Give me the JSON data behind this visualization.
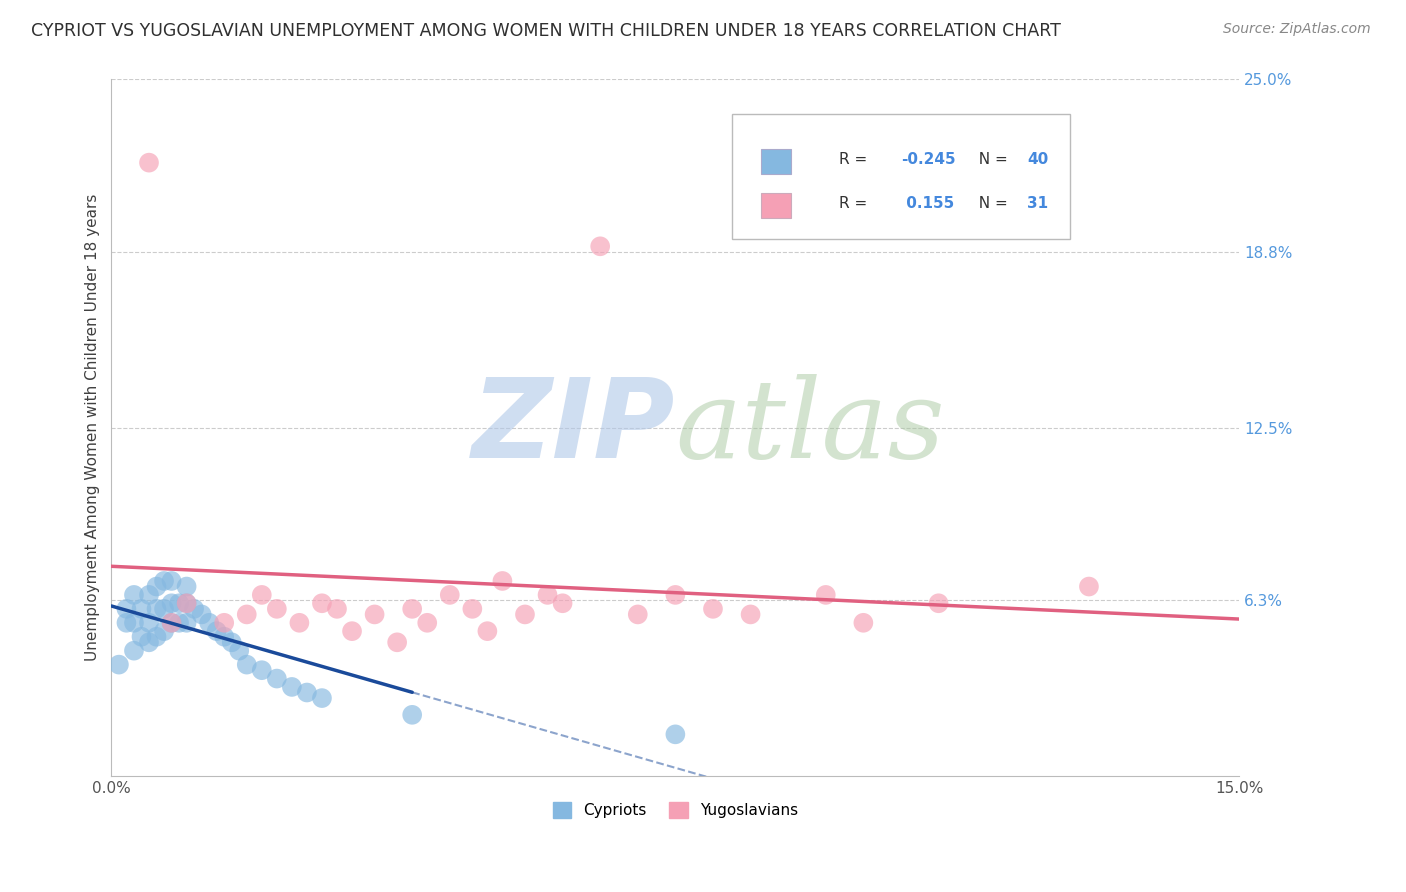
{
  "title": "CYPRIOT VS YUGOSLAVIAN UNEMPLOYMENT AMONG WOMEN WITH CHILDREN UNDER 18 YEARS CORRELATION CHART",
  "source": "Source: ZipAtlas.com",
  "ylabel": "Unemployment Among Women with Children Under 18 years",
  "xlim": [
    0.0,
    0.15
  ],
  "ylim": [
    0.0,
    0.25
  ],
  "ytick_vals": [
    0.063,
    0.125,
    0.188,
    0.25
  ],
  "ytick_labels": [
    "6.3%",
    "12.5%",
    "18.8%",
    "25.0%"
  ],
  "xtick_vals": [
    0.0,
    0.15
  ],
  "xtick_labels": [
    "0.0%",
    "15.0%"
  ],
  "cypriot_R": -0.245,
  "cypriot_N": 40,
  "yugoslav_R": 0.155,
  "yugoslav_N": 31,
  "cypriot_color": "#85b8e0",
  "yugoslav_color": "#f5a0b5",
  "cypriot_line_color": "#1a4a9a",
  "yugoslav_line_color": "#e06080",
  "watermark_zip_color": "#b0c8e8",
  "watermark_atlas_color": "#b0c8b0",
  "background_color": "#ffffff",
  "grid_color": "#cccccc",
  "title_color": "#303030",
  "source_color": "#888888",
  "axis_label_color": "#404040",
  "tick_color_right": "#5599dd",
  "cypriot_x": [
    0.001,
    0.002,
    0.002,
    0.003,
    0.003,
    0.003,
    0.004,
    0.004,
    0.005,
    0.005,
    0.005,
    0.006,
    0.006,
    0.006,
    0.007,
    0.007,
    0.007,
    0.008,
    0.008,
    0.008,
    0.009,
    0.009,
    0.01,
    0.01,
    0.01,
    0.011,
    0.012,
    0.013,
    0.014,
    0.015,
    0.016,
    0.017,
    0.018,
    0.02,
    0.022,
    0.024,
    0.026,
    0.028,
    0.04,
    0.075
  ],
  "cypriot_y": [
    0.04,
    0.055,
    0.06,
    0.045,
    0.055,
    0.065,
    0.05,
    0.06,
    0.048,
    0.055,
    0.065,
    0.05,
    0.06,
    0.068,
    0.052,
    0.06,
    0.07,
    0.055,
    0.062,
    0.07,
    0.055,
    0.062,
    0.055,
    0.062,
    0.068,
    0.06,
    0.058,
    0.055,
    0.052,
    0.05,
    0.048,
    0.045,
    0.04,
    0.038,
    0.035,
    0.032,
    0.03,
    0.028,
    0.022,
    0.015
  ],
  "yugoslav_x": [
    0.005,
    0.008,
    0.01,
    0.015,
    0.018,
    0.02,
    0.022,
    0.025,
    0.028,
    0.03,
    0.032,
    0.035,
    0.038,
    0.04,
    0.042,
    0.045,
    0.048,
    0.05,
    0.052,
    0.055,
    0.058,
    0.06,
    0.065,
    0.07,
    0.075,
    0.08,
    0.085,
    0.095,
    0.1,
    0.11,
    0.13
  ],
  "yugoslav_y": [
    0.22,
    0.055,
    0.062,
    0.055,
    0.058,
    0.065,
    0.06,
    0.055,
    0.062,
    0.06,
    0.052,
    0.058,
    0.048,
    0.06,
    0.055,
    0.065,
    0.06,
    0.052,
    0.07,
    0.058,
    0.065,
    0.062,
    0.19,
    0.058,
    0.065,
    0.06,
    0.058,
    0.065,
    0.055,
    0.062,
    0.068
  ]
}
